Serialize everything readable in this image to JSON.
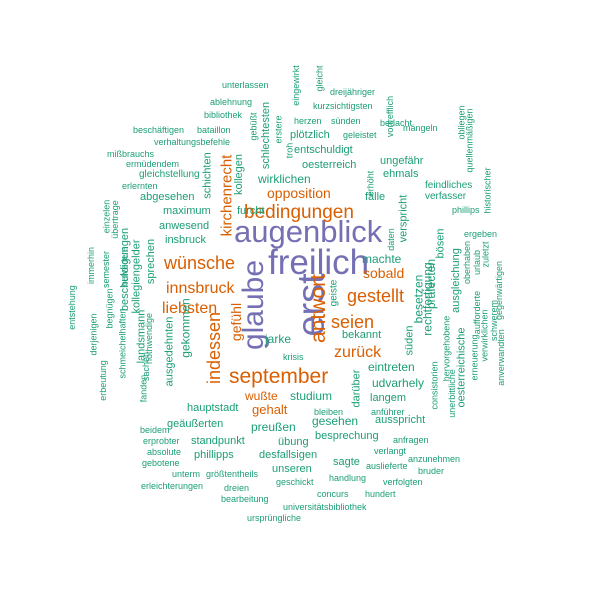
{
  "palette": {
    "major": "#7570b3",
    "secondary": "#d95f02",
    "minor": "#1b9e77"
  },
  "words": [
    {
      "text": "freilich",
      "style": "major"
    },
    {
      "text": "erst",
      "style": "major"
    },
    {
      "text": "augenblick",
      "style": "major"
    },
    {
      "text": "glaube",
      "style": "major"
    },
    {
      "text": "antwort",
      "style": "secondary"
    },
    {
      "text": "bedingungen",
      "style": "secondary"
    },
    {
      "text": "september",
      "style": "secondary"
    },
    {
      "text": "wünsche",
      "style": "secondary"
    },
    {
      "text": "indessen",
      "style": "secondary"
    },
    {
      "text": "innsbruck",
      "style": "secondary"
    },
    {
      "text": "gestellt",
      "style": "secondary"
    },
    {
      "text": "seien",
      "style": "secondary"
    },
    {
      "text": "liebsten",
      "style": "secondary"
    },
    {
      "text": "zurück",
      "style": "secondary"
    },
    {
      "text": "gefühl",
      "style": "secondary"
    },
    {
      "text": "kirchenrecht",
      "style": "secondary"
    },
    {
      "text": "opposition",
      "style": "secondary"
    },
    {
      "text": "sobald",
      "style": "secondary"
    },
    {
      "text": "gehalt",
      "style": "secondary"
    },
    {
      "text": "wußte",
      "style": "secondary"
    },
    {
      "text": "wirklichen",
      "style": "minor"
    },
    {
      "text": "studium",
      "style": "minor"
    },
    {
      "text": "udvarhely",
      "style": "minor"
    },
    {
      "text": "eintreten",
      "style": "minor"
    },
    {
      "text": "machte",
      "style": "minor"
    },
    {
      "text": "besetzen",
      "style": "minor"
    },
    {
      "text": "präfecten",
      "style": "minor"
    },
    {
      "text": "rechtfertigung",
      "style": "minor"
    },
    {
      "text": "fälle",
      "style": "minor"
    },
    {
      "text": "ehmals",
      "style": "minor"
    },
    {
      "text": "oesterreich",
      "style": "minor"
    },
    {
      "text": "entschuldigt",
      "style": "minor"
    },
    {
      "text": "plötzlich",
      "style": "minor"
    },
    {
      "text": "ungefähr",
      "style": "minor"
    },
    {
      "text": "kollegen",
      "style": "minor"
    },
    {
      "text": "schichten",
      "style": "minor"
    },
    {
      "text": "furcht",
      "style": "minor"
    },
    {
      "text": "maximum",
      "style": "minor"
    },
    {
      "text": "anwesend",
      "style": "minor"
    },
    {
      "text": "insbruck",
      "style": "minor"
    },
    {
      "text": "abgesehen",
      "style": "minor"
    },
    {
      "text": "gleichstellung",
      "style": "minor"
    },
    {
      "text": "hauptstadt",
      "style": "minor"
    },
    {
      "text": "gekommen",
      "style": "minor"
    },
    {
      "text": "jarke",
      "style": "minor"
    },
    {
      "text": "preußen",
      "style": "minor"
    },
    {
      "text": "gesehen",
      "style": "minor"
    },
    {
      "text": "ausspricht",
      "style": "minor"
    },
    {
      "text": "besprechung",
      "style": "minor"
    },
    {
      "text": "standpunkt",
      "style": "minor"
    },
    {
      "text": "phillipps",
      "style": "minor"
    },
    {
      "text": "desfallsigen",
      "style": "minor"
    },
    {
      "text": "unseren",
      "style": "minor"
    },
    {
      "text": "sagte",
      "style": "minor"
    },
    {
      "text": "übung",
      "style": "minor"
    },
    {
      "text": "geäußerten",
      "style": "minor"
    },
    {
      "text": "langem",
      "style": "minor"
    },
    {
      "text": "darüber",
      "style": "minor"
    },
    {
      "text": "bekannt",
      "style": "minor"
    },
    {
      "text": "geiste",
      "style": "minor"
    },
    {
      "text": "krisis",
      "style": "minor"
    },
    {
      "text": "süden",
      "style": "minor"
    },
    {
      "text": "verspricht",
      "style": "minor"
    },
    {
      "text": "daten",
      "style": "minor"
    },
    {
      "text": "erhöht",
      "style": "minor"
    },
    {
      "text": "bösen",
      "style": "minor"
    },
    {
      "text": "ergeben",
      "style": "minor"
    },
    {
      "text": "phillips",
      "style": "minor"
    },
    {
      "text": "feindliches",
      "style": "minor"
    },
    {
      "text": "verfasser",
      "style": "minor"
    },
    {
      "text": "ausgleichung",
      "style": "minor"
    },
    {
      "text": "oberhaben",
      "style": "minor"
    },
    {
      "text": "urlaub",
      "style": "minor"
    },
    {
      "text": "zuletzt",
      "style": "minor"
    },
    {
      "text": "gegenwärtigen",
      "style": "minor"
    },
    {
      "text": "anverwandten",
      "style": "minor"
    },
    {
      "text": "schwerem",
      "style": "minor"
    },
    {
      "text": "verwirklichen",
      "style": "minor"
    },
    {
      "text": "aufforderte",
      "style": "minor"
    },
    {
      "text": "erneuerung",
      "style": "minor"
    },
    {
      "text": "oesterreichische",
      "style": "minor"
    },
    {
      "text": "hervorgehobene",
      "style": "minor"
    },
    {
      "text": "unerbittliche",
      "style": "minor"
    },
    {
      "text": "consistorien",
      "style": "minor"
    },
    {
      "text": "anfragen",
      "style": "minor"
    },
    {
      "text": "anzunehmen",
      "style": "minor"
    },
    {
      "text": "auslieferte",
      "style": "minor"
    },
    {
      "text": "bruder",
      "style": "minor"
    },
    {
      "text": "verfolgten",
      "style": "minor"
    },
    {
      "text": "hundert",
      "style": "minor"
    },
    {
      "text": "verlangt",
      "style": "minor"
    },
    {
      "text": "handlung",
      "style": "minor"
    },
    {
      "text": "anführer",
      "style": "minor"
    },
    {
      "text": "bleiben",
      "style": "minor"
    },
    {
      "text": "concurs",
      "style": "minor"
    },
    {
      "text": "geschickt",
      "style": "minor"
    },
    {
      "text": "universitätsbibliothek",
      "style": "minor"
    },
    {
      "text": "ursprüngliche",
      "style": "minor"
    },
    {
      "text": "bearbeitung",
      "style": "minor"
    },
    {
      "text": "dreien",
      "style": "minor"
    },
    {
      "text": "erleichterungen",
      "style": "minor"
    },
    {
      "text": "unterm",
      "style": "minor"
    },
    {
      "text": "größtentheils",
      "style": "minor"
    },
    {
      "text": "gebotene",
      "style": "minor"
    },
    {
      "text": "absolute",
      "style": "minor"
    },
    {
      "text": "erprobter",
      "style": "minor"
    },
    {
      "text": "beidem",
      "style": "minor"
    },
    {
      "text": "fanden",
      "style": "minor"
    },
    {
      "text": "sachen",
      "style": "minor"
    },
    {
      "text": "nothwendige",
      "style": "minor"
    },
    {
      "text": "schmeichelhaften",
      "style": "minor"
    },
    {
      "text": "begnügen",
      "style": "minor"
    },
    {
      "text": "derjenigen",
      "style": "minor"
    },
    {
      "text": "erbeutung",
      "style": "minor"
    },
    {
      "text": "entstehung",
      "style": "minor"
    },
    {
      "text": "immerhin",
      "style": "minor"
    },
    {
      "text": "semester",
      "style": "minor"
    },
    {
      "text": "belvedere",
      "style": "minor"
    },
    {
      "text": "einzelen",
      "style": "minor"
    },
    {
      "text": "beschuldigungen",
      "style": "minor"
    },
    {
      "text": "übertrage",
      "style": "minor"
    },
    {
      "text": "landsmann",
      "style": "minor"
    },
    {
      "text": "kollegiengelder",
      "style": "minor"
    },
    {
      "text": "sprechen",
      "style": "minor"
    },
    {
      "text": "ausgedehnten",
      "style": "minor"
    },
    {
      "text": "erlernten",
      "style": "minor"
    },
    {
      "text": "ermüdendem",
      "style": "minor"
    },
    {
      "text": "mißbrauchs",
      "style": "minor"
    },
    {
      "text": "verhaltungsbefehle",
      "style": "minor"
    },
    {
      "text": "beschäftigen",
      "style": "minor"
    },
    {
      "text": "bataillon",
      "style": "minor"
    },
    {
      "text": "bibliothek",
      "style": "minor"
    },
    {
      "text": "ablehnung",
      "style": "minor"
    },
    {
      "text": "unterlassen",
      "style": "minor"
    },
    {
      "text": "gebüßt",
      "style": "minor"
    },
    {
      "text": "erstere",
      "style": "minor"
    },
    {
      "text": "schlechtesten",
      "style": "minor"
    },
    {
      "text": "troh",
      "style": "minor"
    },
    {
      "text": "eingewirkt",
      "style": "minor"
    },
    {
      "text": "gleicht",
      "style": "minor"
    },
    {
      "text": "dreijähriger",
      "style": "minor"
    },
    {
      "text": "kurzsichtigsten",
      "style": "minor"
    },
    {
      "text": "herzen",
      "style": "minor"
    },
    {
      "text": "sünden",
      "style": "minor"
    },
    {
      "text": "geleistet",
      "style": "minor"
    },
    {
      "text": "vortrefflich",
      "style": "minor"
    },
    {
      "text": "bedacht",
      "style": "minor"
    },
    {
      "text": "mängeln",
      "style": "minor"
    },
    {
      "text": "obliegen",
      "style": "minor"
    },
    {
      "text": "quellenmäßigen",
      "style": "minor"
    },
    {
      "text": "historischer",
      "style": "minor"
    }
  ]
}
